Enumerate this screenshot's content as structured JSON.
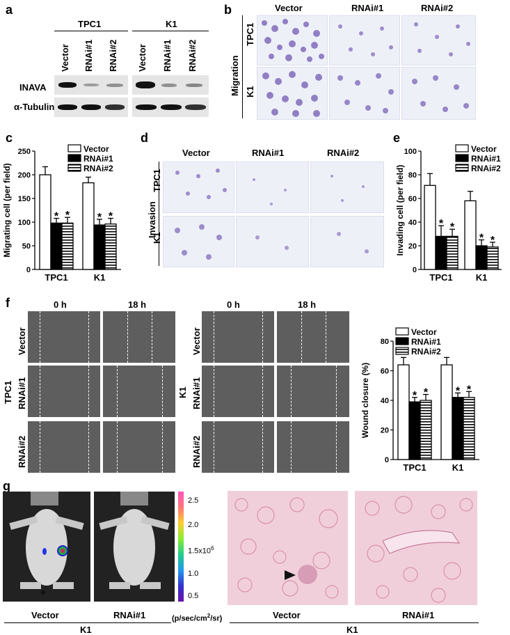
{
  "panels": [
    "a",
    "b",
    "c",
    "d",
    "e",
    "f",
    "g"
  ],
  "colors": {
    "purple_stain": "#7b63b8",
    "gray_wound": "#5e5e5e",
    "histo_pink": "#f1cfda",
    "blot_bg": "#e5e5e5"
  },
  "icons": {
    "arrowhead": "arrowhead-icon"
  },
  "a": {
    "groups": [
      "TPC1",
      "K1"
    ],
    "lanes": [
      "Vector",
      "RNAi#1",
      "RNAi#2",
      "Vector",
      "RNAi#1",
      "RNAi#2"
    ],
    "rows": [
      "INAVA",
      "α-Tubulin"
    ],
    "inava_intensity": [
      0.85,
      0.3,
      0.35,
      0.9,
      0.35,
      0.4
    ],
    "tubulin_intensity": [
      0.9,
      0.9,
      0.85,
      0.9,
      0.9,
      0.85
    ]
  },
  "b": {
    "cols": [
      "Vector",
      "RNAi#1",
      "RNAi#2"
    ],
    "rows": [
      "TPC1",
      "K1"
    ],
    "side_label": "Migration"
  },
  "d": {
    "cols": [
      "Vector",
      "RNAi#1",
      "RNAi#2"
    ],
    "rows": [
      "TPC1",
      "K1"
    ],
    "side_label": "Invasion"
  },
  "f": {
    "times": [
      "0 h",
      "18 h"
    ],
    "rows": [
      "Vector",
      "RNAi#1",
      "RNAi#2"
    ],
    "cells": [
      "TPC1",
      "K1"
    ]
  },
  "g": {
    "scale_ticks": [
      "2.5",
      "2.0",
      "1.5x10",
      "1.0",
      "0.5"
    ],
    "scale_exp": "6",
    "scale_unit": "(p/sec/cm",
    "scale_unit_tail": "/sr)",
    "scale_unit_sup": "2",
    "mouse_labels": [
      "Vector",
      "RNAi#1"
    ],
    "histo_labels": [
      "Vector",
      "RNAi#1"
    ],
    "group": "K1"
  },
  "chart_data": [
    {
      "panel": "c",
      "type": "bar",
      "categories": [
        "TPC1",
        "K1"
      ],
      "series": [
        {
          "name": "Vector",
          "values": [
            200,
            183
          ],
          "errors": [
            17,
            12
          ]
        },
        {
          "name": "RNAi#1",
          "values": [
            98,
            94
          ],
          "errors": [
            10,
            12
          ]
        },
        {
          "name": "RNAi#2",
          "values": [
            98,
            96
          ],
          "errors": [
            12,
            12
          ]
        }
      ],
      "significance": [
        "",
        "*",
        "*",
        "",
        "*",
        "*"
      ],
      "ylabel": "Migrating cell (per field)",
      "ylim": [
        0,
        250
      ],
      "yticks": [
        0,
        50,
        100,
        150,
        200,
        250
      ],
      "legend": "top-right"
    },
    {
      "panel": "e",
      "type": "bar",
      "categories": [
        "TPC1",
        "K1"
      ],
      "series": [
        {
          "name": "Vector",
          "values": [
            71,
            58
          ],
          "errors": [
            10,
            8
          ]
        },
        {
          "name": "RNAi#1",
          "values": [
            28,
            20
          ],
          "errors": [
            9,
            5
          ]
        },
        {
          "name": "RNAi#2",
          "values": [
            28,
            19
          ],
          "errors": [
            6,
            4
          ]
        }
      ],
      "significance": [
        "",
        "*",
        "*",
        "",
        "*",
        "*"
      ],
      "ylabel": "Invading cell (per field)",
      "ylim": [
        0,
        100
      ],
      "yticks": [
        0,
        20,
        40,
        60,
        80,
        100
      ],
      "legend": "top-right"
    },
    {
      "panel": "f",
      "type": "bar",
      "categories": [
        "TPC1",
        "K1"
      ],
      "series": [
        {
          "name": "Vector",
          "values": [
            64,
            64
          ],
          "errors": [
            5,
            5
          ]
        },
        {
          "name": "RNAi#1",
          "values": [
            39,
            42
          ],
          "errors": [
            3,
            3
          ]
        },
        {
          "name": "RNAi#2",
          "values": [
            40,
            42
          ],
          "errors": [
            4,
            4
          ]
        }
      ],
      "significance": [
        "",
        "*",
        "*",
        "",
        "*",
        "*"
      ],
      "ylabel": "Wound closure (%)",
      "ylim": [
        0,
        80
      ],
      "yticks": [
        0,
        20,
        40,
        60,
        80
      ],
      "legend": "top-right"
    }
  ]
}
